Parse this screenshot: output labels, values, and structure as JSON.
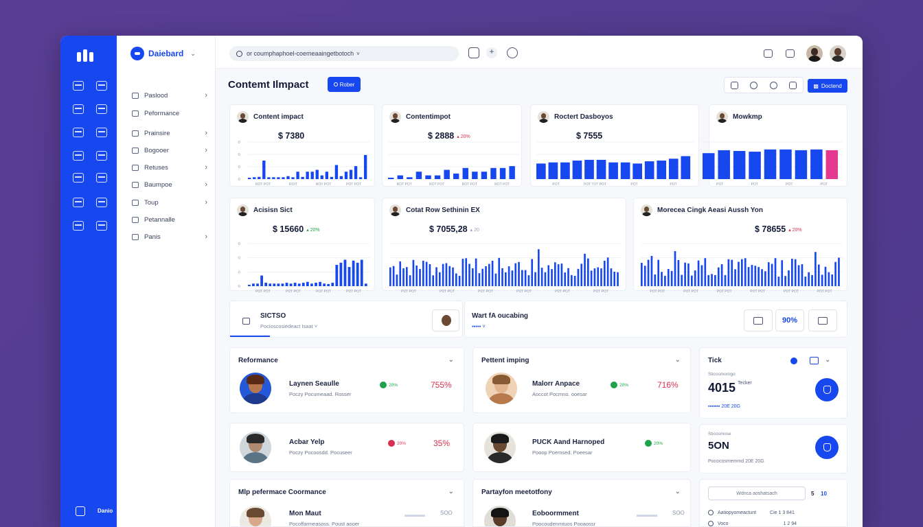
{
  "sidebar": {
    "brand": "Daiebard",
    "items": [
      {
        "label": "Paslood",
        "chevron": true
      },
      {
        "label": "Peformance",
        "chevron": false
      },
      {
        "label": "Prainsire",
        "chevron": true
      },
      {
        "label": "Bogooer",
        "chevron": true
      },
      {
        "label": "Retuses",
        "chevron": true
      },
      {
        "label": "Baumpoe",
        "chevron": true
      },
      {
        "label": "Toup",
        "chevron": true
      },
      {
        "label": "Petannalle",
        "chevron": false
      },
      {
        "label": "Panis",
        "chevron": true
      }
    ],
    "footer_label": "Danio"
  },
  "header": {
    "search_value": "or coumphaphoel-coemeaaingetbotoch",
    "add_label": "+"
  },
  "page": {
    "title": "Contemt Ilmpact",
    "filter_label": "Rober",
    "primary_label": "Doctend"
  },
  "kpi_cards": [
    {
      "title": "Content impact",
      "value": "$ 7380",
      "delta": "",
      "delta_type": "muted",
      "ticks": [
        "0",
        "0",
        "0",
        "0"
      ],
      "xlabels": [
        "ROT POT",
        "ROIT",
        "ROY POT",
        "POT POT"
      ]
    },
    {
      "title": "Contentimpot",
      "value": "$ 2888",
      "delta": "▴ 20%",
      "delta_type": "down",
      "xlabels": [
        "ROT POT",
        "ROT POT",
        "ROT POT",
        "ROT POT"
      ]
    },
    {
      "title": "Roctert Dasboyos",
      "value": "$ 7555",
      "delta": "",
      "delta_type": "muted",
      "xlabels": [
        "POT",
        "POT TOT POT",
        "POT",
        "POT"
      ]
    },
    {
      "title": "Mowkmp",
      "value": "",
      "delta": "",
      "delta_type": "muted",
      "xlabels": [
        "POT",
        "POT",
        "POT",
        "POT"
      ]
    },
    {
      "title": "Acisisn Sict",
      "value": "$ 15660",
      "delta": "▴ 20%",
      "delta_type": "up",
      "ticks": [
        "0",
        "0",
        "0",
        "0"
      ],
      "xlabels": [
        "POT POT",
        "POT POT",
        "POT POT",
        "POT POT"
      ]
    },
    {
      "title": "Cotat Row Sethinin EX",
      "value": "$ 7055,28",
      "delta": "▴ 20",
      "delta_type": "muted",
      "xlabels": [
        "POT POT",
        "POT POT",
        "POT POT",
        "POT POT",
        "POT POT",
        "POT POT"
      ]
    },
    {
      "title": "Morecea Cingk Aeasi Aussh Yon",
      "value": "$ 78655",
      "delta": "▴ 20%",
      "delta_type": "down",
      "xlabels": [
        "POT POT",
        "POT POT",
        "POT POT",
        "POT POT",
        "POT POT",
        "POT POT"
      ]
    }
  ],
  "strip": {
    "title": "SICTSO",
    "subtitle": "Pocioscosiedeact Isaat ˅",
    "middle_title": "Wart fA oucabing",
    "middle_sub": "▪▪▪▪▪ ˅",
    "percent": "90%"
  },
  "people_sections": [
    {
      "title": "Reformance",
      "people": [
        {
          "name": "Laynen Seaulle",
          "role": "Poczy Pocumeaad. Rosser",
          "pill": "20%",
          "pill_color": "#1ea34a",
          "pct": "755%"
        }
      ]
    },
    {
      "title": "Pettent imping",
      "people": [
        {
          "name": "Malorr Anpace",
          "role": "Aoccot Pocmno. ooesar",
          "pill": "20%",
          "pill_color": "#1ea34a",
          "pct": "716%"
        }
      ]
    },
    {
      "title": "",
      "people": [
        {
          "name": "Acbar Yelp",
          "role": "Poczy Pocoosdd. Pocuseer",
          "pill": "20%",
          "pill_color": "#d9304f",
          "pct": "35%"
        }
      ]
    },
    {
      "title": "",
      "people": [
        {
          "name": "PUCK Aand Harnoped",
          "role": "Pooop Poemsed. Poeesar",
          "pill": "20%",
          "pill_color": "#1ea34a",
          "pct": ""
        }
      ]
    },
    {
      "title": "Mlp pefermace Coormance",
      "people": [
        {
          "name": "Mon Maut",
          "role": "Pocoffarmeasoss. Poust aooer",
          "pill": "",
          "pill_color": "",
          "pct": "SOO"
        }
      ]
    },
    {
      "title": "Partayfon meetotfony",
      "people": [
        {
          "name": "Eoboormment",
          "role": "Poocoudenmtuos Pooaossr",
          "pill": "",
          "pill_color": "",
          "pct": "SOO"
        }
      ]
    }
  ],
  "stats": [
    {
      "label": "Tick",
      "caption": "Sticosmorogo",
      "big": "4015",
      "unit": "Tecker",
      "foot": "▪▪▪▪▪▪▪ 20E 20G"
    },
    {
      "label": "",
      "caption": "Sticosmose",
      "big": "5ON",
      "unit": "",
      "foot": "Pococosmemmd 20E 20G"
    }
  ],
  "bottom_right": {
    "input_placeholder": "Wdnca aoshatsach",
    "num_a": "5",
    "num_b": "10",
    "rows": [
      {
        "text": "Aatiopyomeactunt",
        "value": "Cie 1 3 841"
      },
      {
        "text": "Voco",
        "value": "1 2 94"
      }
    ]
  },
  "colors": {
    "accent": "#1747ef",
    "up": "#1ea34a",
    "down": "#d9304f",
    "highlight": "#e33a8f"
  }
}
